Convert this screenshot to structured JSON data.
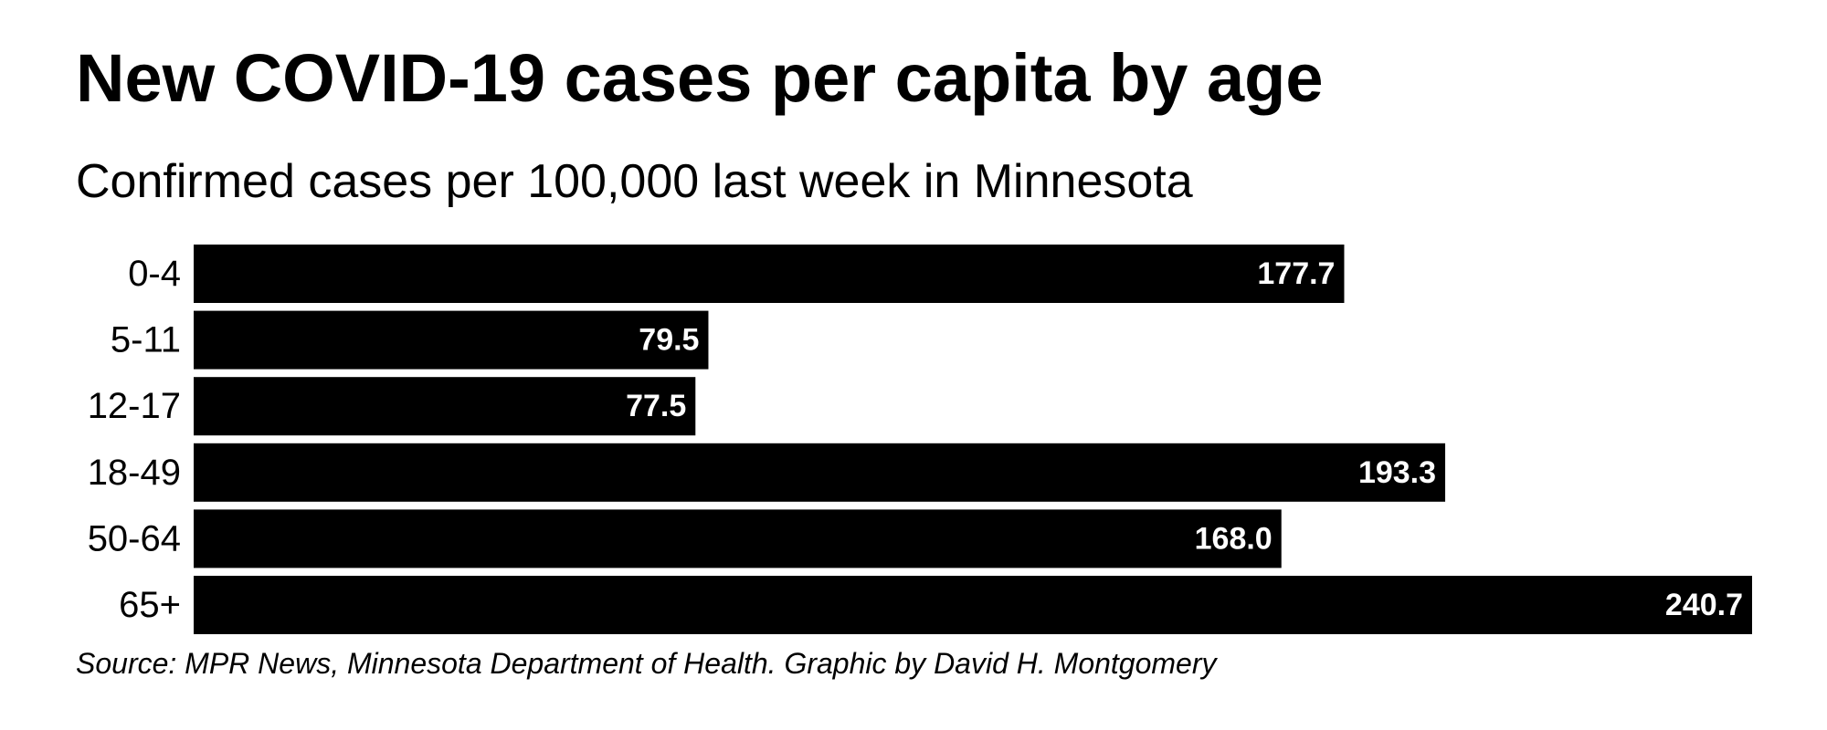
{
  "title": "New COVID-19 cases per capita by age",
  "subtitle": "Confirmed cases per 100,000 last week in Minnesota",
  "source": "Source: MPR News, Minnesota Department of Health. Graphic by David H. Montgomery",
  "colors": {
    "bar": "#000000",
    "bar_label": "#ffffff",
    "text": "#000000",
    "background": "#ffffff"
  },
  "chart_data": {
    "type": "bar",
    "orientation": "horizontal",
    "title": "New COVID-19 cases per capita by age",
    "subtitle": "Confirmed cases per 100,000 last week in Minnesota",
    "categories": [
      "0-4",
      "5-11",
      "12-17",
      "18-49",
      "50-64",
      "65+"
    ],
    "values": [
      177.7,
      79.5,
      77.5,
      193.3,
      168.0,
      240.7
    ],
    "value_labels": [
      "177.7",
      "79.5",
      "77.5",
      "193.3",
      "168.0",
      "240.7"
    ],
    "xlabel": "",
    "ylabel": "",
    "xlim": [
      0,
      240.7
    ],
    "grid": false,
    "legend": "none",
    "data_labels": "inside-end"
  }
}
